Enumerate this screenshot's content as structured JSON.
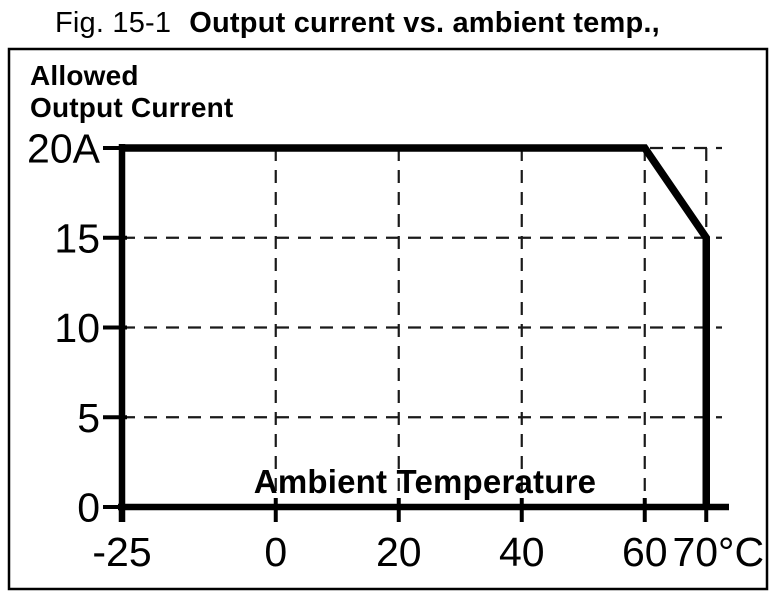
{
  "figure": {
    "title_prefix": "Fig. 15-1",
    "title_main": "Output current vs. ambient temp.,"
  },
  "chart_data": {
    "type": "line",
    "title": "Output current vs. ambient temp.",
    "y_axis_title_lines": [
      "Allowed",
      "Output Current"
    ],
    "x_axis_inner_label": "Ambient Temperature",
    "x_unit": "°C",
    "y_unit": "A",
    "xlim": [
      -25,
      73
    ],
    "ylim": [
      0,
      20
    ],
    "x_ticks": [
      {
        "value": -25,
        "label": "-25"
      },
      {
        "value": 0,
        "label": "0"
      },
      {
        "value": 20,
        "label": "20"
      },
      {
        "value": 40,
        "label": "40"
      },
      {
        "value": 60,
        "label": "60"
      },
      {
        "value": 70,
        "label": "70°C"
      }
    ],
    "y_ticks": [
      {
        "value": 0,
        "label": "0"
      },
      {
        "value": 5,
        "label": "5"
      },
      {
        "value": 10,
        "label": "10"
      },
      {
        "value": 15,
        "label": "15"
      },
      {
        "value": 20,
        "label": "20A"
      }
    ],
    "grid": {
      "style": "dashed",
      "x_values": [
        0,
        20,
        40,
        60,
        70
      ],
      "y_values": [
        5,
        10,
        15,
        20
      ]
    },
    "series": [
      {
        "name": "allowed-output-current",
        "points": [
          [
            -25,
            20
          ],
          [
            60,
            20
          ],
          [
            70,
            15
          ],
          [
            70,
            0
          ]
        ]
      }
    ],
    "colors": {
      "line": "#000000",
      "grid": "#1a1a1a",
      "axis": "#000000",
      "text": "#000000",
      "background": "#ffffff"
    }
  }
}
